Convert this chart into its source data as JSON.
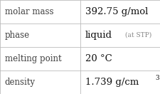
{
  "rows": [
    {
      "label": "molar mass",
      "value": "392.75 g/mol",
      "suffix": null,
      "superscript": null
    },
    {
      "label": "phase",
      "value": "liquid",
      "suffix": " (at STP)",
      "superscript": null
    },
    {
      "label": "melting point",
      "value": "20 °C",
      "suffix": null,
      "superscript": null
    },
    {
      "label": "density",
      "value": "1.739 g/cm",
      "suffix": null,
      "superscript": "3"
    }
  ],
  "col_split": 0.5,
  "bg_color": "#ffffff",
  "border_color": "#bbbbbb",
  "label_color": "#404040",
  "value_color": "#111111",
  "suffix_color": "#888888",
  "label_fontsize": 8.5,
  "value_fontsize": 9.5,
  "suffix_fontsize": 6.5,
  "super_fontsize": 6.5,
  "font_family": "DejaVu Serif"
}
